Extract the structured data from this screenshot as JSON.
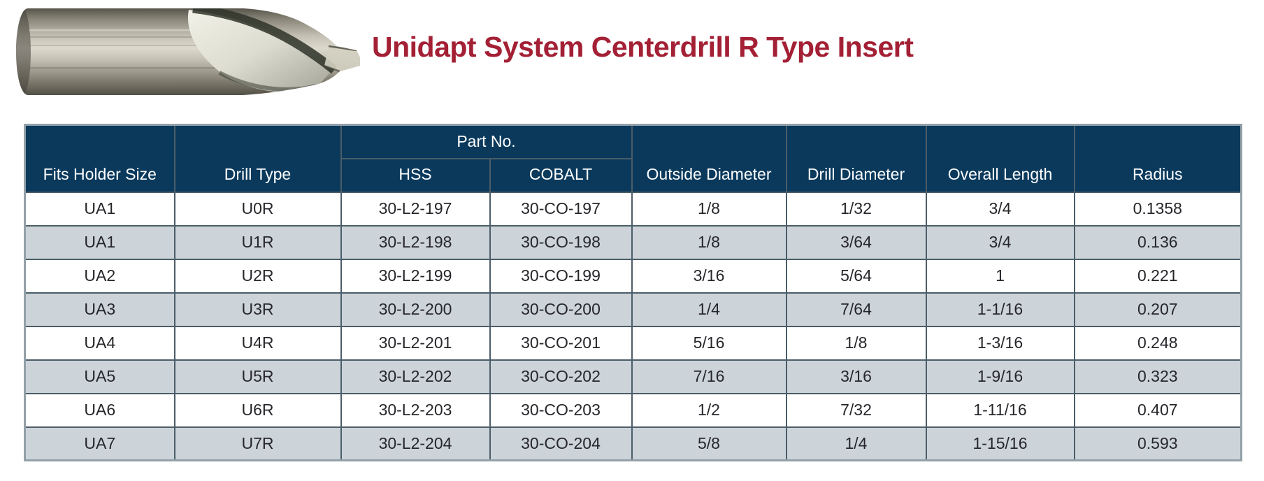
{
  "header": {
    "title": "Unidapt System Centerdrill R Type Insert",
    "image_name": "centerdrill-r-type-insert-photo"
  },
  "colors": {
    "title": "#a32035",
    "table_header_bg": "#0a395c",
    "table_header_text": "#ffffff",
    "row_alt_bg": "#ccd4da",
    "cell_text": "#26262b",
    "grid_border": "#4b5d68"
  },
  "table": {
    "part_no_group_label": "Part No.",
    "columns": [
      "Fits Holder Size",
      "Drill Type",
      "HSS",
      "COBALT",
      "Outside Diameter",
      "Drill Diameter",
      "Overall Length",
      "Radius"
    ],
    "rows": [
      [
        "UA1",
        "U0R",
        "30-L2-197",
        "30-CO-197",
        "1/8",
        "1/32",
        "3/4",
        "0.1358"
      ],
      [
        "UA1",
        "U1R",
        "30-L2-198",
        "30-CO-198",
        "1/8",
        "3/64",
        "3/4",
        "0.136"
      ],
      [
        "UA2",
        "U2R",
        "30-L2-199",
        "30-CO-199",
        "3/16",
        "5/64",
        "1",
        "0.221"
      ],
      [
        "UA3",
        "U3R",
        "30-L2-200",
        "30-CO-200",
        "1/4",
        "7/64",
        "1-1/16",
        "0.207"
      ],
      [
        "UA4",
        "U4R",
        "30-L2-201",
        "30-CO-201",
        "5/16",
        "1/8",
        "1-3/16",
        "0.248"
      ],
      [
        "UA5",
        "U5R",
        "30-L2-202",
        "30-CO-202",
        "7/16",
        "3/16",
        "1-9/16",
        "0.323"
      ],
      [
        "UA6",
        "U6R",
        "30-L2-203",
        "30-CO-203",
        "1/2",
        "7/32",
        "1-11/16",
        "0.407"
      ],
      [
        "UA7",
        "U7R",
        "30-L2-204",
        "30-CO-204",
        "5/8",
        "1/4",
        "1-15/16",
        "0.593"
      ]
    ]
  }
}
